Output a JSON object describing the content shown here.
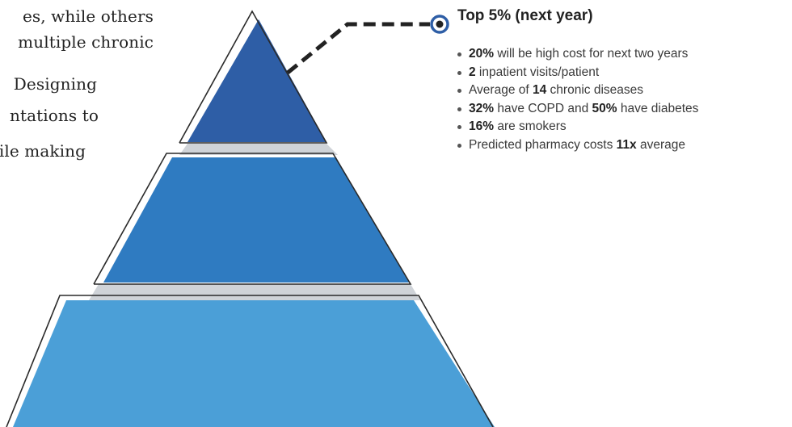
{
  "body_text_lines": [
    "es, while others",
    "multiple chronic",
    "Designing",
    "ntations to",
    "ile making"
  ],
  "callout": {
    "title": "Top 5% (next year)",
    "bullets": [
      {
        "bold": "20%",
        "rest": " will be high cost for next two years"
      },
      {
        "bold": "2",
        "rest": " inpatient visits/patient"
      },
      {
        "pre": "Average of ",
        "bold": "14",
        "rest": " chronic diseases"
      },
      {
        "bold": "32%",
        "rest": " have COPD and ",
        "bold2": "50%",
        "rest2": " have diabetes"
      },
      {
        "bold": "16%",
        "rest": " are smokers"
      },
      {
        "pre": "Predicted pharmacy costs ",
        "bold": "11x",
        "rest": " average"
      }
    ]
  },
  "colors": {
    "tier_top": "#2e5ea6",
    "tier_middle": "#2f7bc1",
    "tier_bottom": "#4b9fd7",
    "outline": "#2a2a2a",
    "shadow": "#cfd3d8",
    "connector": "#222222",
    "marker_ring": "#2e5ea6"
  }
}
